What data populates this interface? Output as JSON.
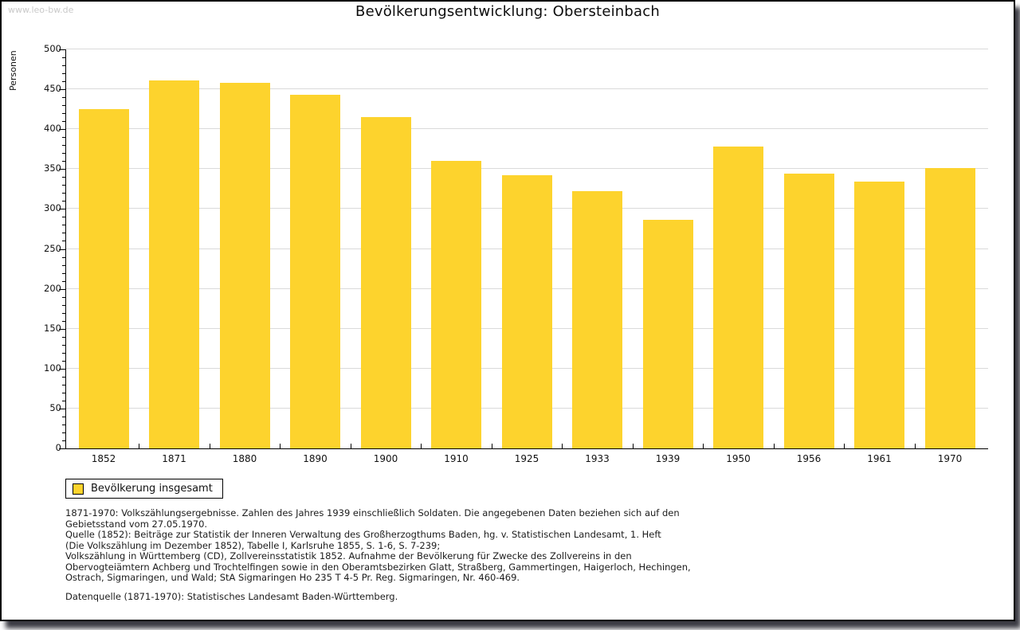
{
  "watermark": "www.leo-bw.de",
  "title": "Bevölkerungsentwicklung: Obersteinbach",
  "chart_data": {
    "type": "bar",
    "title": "Bevölkerungsentwicklung: Obersteinbach",
    "xlabel": "",
    "ylabel": "Personen",
    "categories": [
      "1852",
      "1871",
      "1880",
      "1890",
      "1900",
      "1910",
      "1925",
      "1933",
      "1939",
      "1950",
      "1956",
      "1961",
      "1970"
    ],
    "values": [
      425,
      461,
      458,
      443,
      415,
      360,
      342,
      322,
      286,
      378,
      344,
      334,
      351
    ],
    "series_label": "Bevölkerung insgesamt",
    "ylim": [
      0,
      500
    ],
    "ytick_step": 50,
    "y_minor_step": 10,
    "grid": true,
    "legend_position": "bottom-left",
    "colors": {
      "bar": "#FDD32D",
      "gridline": "#dadada",
      "axis": "#000000"
    }
  },
  "footnotes": [
    "1871-1970: Volkszählungsergebnisse. Zahlen des Jahres 1939 einschließlich Soldaten. Die angegebenen Daten beziehen sich auf den",
    "Gebietsstand vom 27.05.1970.",
    "Quelle (1852): Beiträge zur Statistik der Inneren Verwaltung des Großherzogthums Baden, hg. v. Statistischen Landesamt, 1. Heft",
    "(Die Volkszählung im Dezember 1852), Tabelle I, Karlsruhe 1855, S. 1-6, S. 7-239;",
    "Volkszählung in Württemberg (CD), Zollvereinsstatistik 1852. Aufnahme der Bevölkerung für Zwecke des Zollvereins in den",
    "Obervogteiämtern Achberg und Trochtelfingen sowie in den Oberamtsbezirken Glatt, Straßberg, Gammertingen, Haigerloch, Hechingen,",
    "Ostrach, Sigmaringen, und Wald; StA Sigmaringen Ho 235 T 4-5 Pr. Reg. Sigmaringen, Nr. 460-469."
  ],
  "datasource": "Datenquelle (1871-1970): Statistisches Landesamt Baden-Württemberg."
}
